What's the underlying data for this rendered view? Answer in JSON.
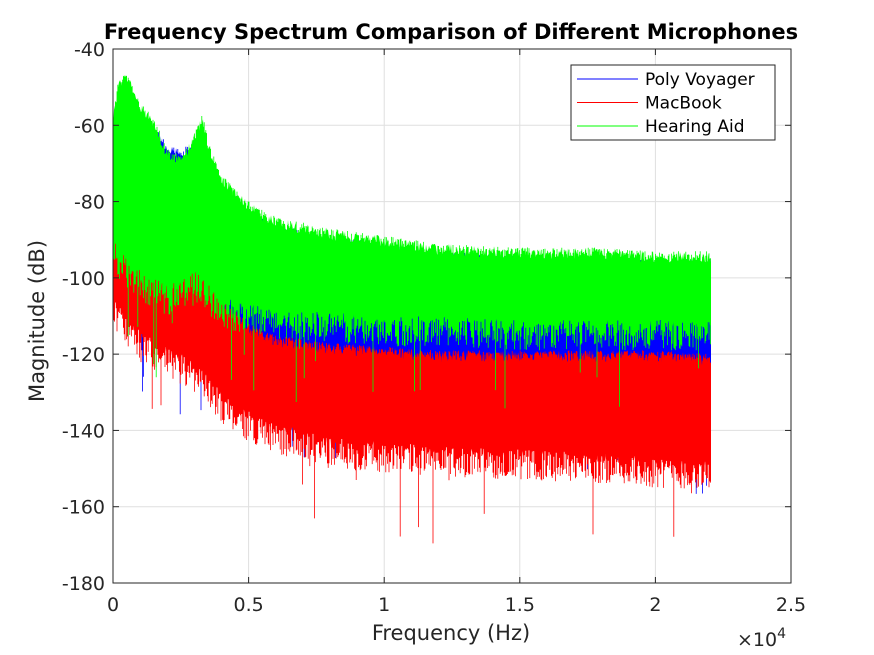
{
  "chart_data": {
    "type": "line",
    "title": "Frequency Spectrum Comparison of Different Microphones",
    "xlabel": "Frequency (Hz)",
    "ylabel": "Magnitude (dB)",
    "xlim": [
      0,
      25000
    ],
    "ylim": [
      -180,
      -40
    ],
    "x_ticks": [
      0,
      5000,
      10000,
      15000,
      20000,
      25000
    ],
    "x_tick_labels": [
      "0",
      "0.5",
      "1",
      "1.5",
      "2",
      "2.5"
    ],
    "x_exponent_label": "×10",
    "x_exponent_power": "4",
    "y_ticks": [
      -180,
      -160,
      -140,
      -120,
      -100,
      -80,
      -60,
      -40
    ],
    "y_tick_labels": [
      "-180",
      "-160",
      "-140",
      "-120",
      "-100",
      "-80",
      "-60",
      "-40"
    ],
    "grid": true,
    "legend_position": "top-right",
    "x_max_data": 22050,
    "series": [
      {
        "name": "Poly Voyager",
        "color": "#0000ff",
        "envelope": {
          "x": [
            0,
            200,
            500,
            1000,
            1500,
            2000,
            2300,
            2600,
            3000,
            3500,
            4000,
            5000,
            6000,
            8000,
            10000,
            12000,
            15000,
            18000,
            20000,
            22050
          ],
          "upper": [
            -62,
            -55,
            -50,
            -58,
            -60,
            -65,
            -66,
            -66,
            -64,
            -68,
            -75,
            -82,
            -86,
            -89,
            -91,
            -93,
            -94,
            -95,
            -95,
            -95
          ],
          "lower": [
            -100,
            -104,
            -108,
            -112,
            -114,
            -116,
            -120,
            -122,
            -118,
            -120,
            -124,
            -128,
            -130,
            -132,
            -134,
            -135,
            -136,
            -137,
            -138,
            -140
          ]
        }
      },
      {
        "name": "MacBook",
        "color": "#ff0000",
        "envelope": {
          "x": [
            0,
            200,
            500,
            1000,
            1500,
            2000,
            2500,
            3000,
            3500,
            4000,
            5000,
            6000,
            7000,
            8000,
            10000,
            12000,
            15000,
            18000,
            20000,
            22050
          ],
          "upper": [
            -88,
            -82,
            -78,
            -85,
            -92,
            -94,
            -96,
            -88,
            -95,
            -105,
            -112,
            -115,
            -116,
            -117,
            -118,
            -119,
            -119,
            -119,
            -119,
            -120
          ],
          "lower": [
            -112,
            -115,
            -118,
            -122,
            -124,
            -126,
            -128,
            -130,
            -134,
            -138,
            -143,
            -146,
            -148,
            -150,
            -151,
            -152,
            -153,
            -154,
            -155,
            -156
          ]
        }
      },
      {
        "name": "Hearing Aid",
        "color": "#00ff00",
        "envelope": {
          "x": [
            0,
            200,
            500,
            1000,
            1500,
            2000,
            2500,
            3000,
            3300,
            3600,
            4000,
            5000,
            6000,
            8000,
            10000,
            12000,
            15000,
            18000,
            20000,
            22050
          ],
          "upper": [
            -57,
            -48,
            -46,
            -54,
            -58,
            -66,
            -68,
            -62,
            -57,
            -66,
            -73,
            -80,
            -84,
            -87,
            -89,
            -91,
            -92,
            -92,
            -93,
            -93
          ],
          "lower": [
            -97,
            -100,
            -103,
            -106,
            -108,
            -110,
            -108,
            -106,
            -108,
            -110,
            -113,
            -115,
            -116,
            -117,
            -118,
            -118,
            -119,
            -119,
            -119,
            -119
          ]
        }
      }
    ]
  }
}
